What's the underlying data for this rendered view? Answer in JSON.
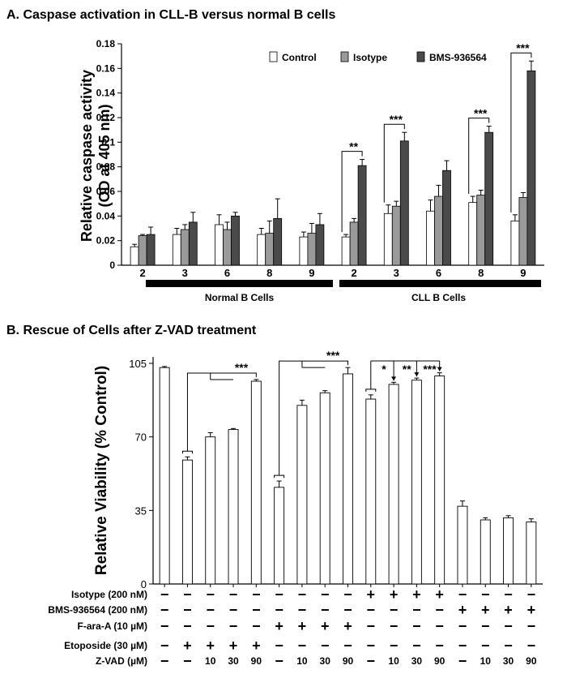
{
  "panel_a_title": "A. Caspase activation in CLL-B versus normal B cells",
  "panel_b_title": "B. Rescue of Cells after Z-VAD treatment",
  "colors": {
    "control": "#ffffff",
    "isotype": "#9a9a9a",
    "bms": "#4a4a4a"
  },
  "chart_data": [
    {
      "type": "bar",
      "title": "Caspase activation in CLL-B versus normal B cells",
      "ylabel": "Relative caspase activity (OD at 405 nm)",
      "ylabel_lines": [
        "Relative caspase activity",
        "(OD at 405 nm)"
      ],
      "ylim": [
        0,
        0.18
      ],
      "yticks": [
        "0",
        "0.02",
        "0.04",
        "0.06",
        "0.08",
        "0.1",
        "0.12",
        "0.14",
        "0.16",
        "0.18"
      ],
      "categories": [
        "2",
        "3",
        "6",
        "8",
        "9",
        "2",
        "3",
        "6",
        "8",
        "9"
      ],
      "groups": [
        {
          "label": "Normal B Cells"
        },
        {
          "label": "CLL B Cells"
        }
      ],
      "series": [
        {
          "name": "Control",
          "values": [
            0.015,
            0.025,
            0.033,
            0.025,
            0.023,
            0.023,
            0.042,
            0.044,
            0.051,
            0.036
          ],
          "errors": [
            0.002,
            0.005,
            0.008,
            0.005,
            0.004,
            0.002,
            0.007,
            0.009,
            0.005,
            0.005
          ]
        },
        {
          "name": "Isotype",
          "values": [
            0.024,
            0.029,
            0.029,
            0.026,
            0.026,
            0.035,
            0.048,
            0.056,
            0.057,
            0.055
          ],
          "errors": [
            0.001,
            0.004,
            0.006,
            0.01,
            0.008,
            0.003,
            0.004,
            0.009,
            0.004,
            0.004
          ]
        },
        {
          "name": "BMS-936564",
          "values": [
            0.025,
            0.035,
            0.04,
            0.038,
            0.033,
            0.081,
            0.101,
            0.077,
            0.108,
            0.158
          ],
          "errors": [
            0.006,
            0.008,
            0.003,
            0.016,
            0.009,
            0.005,
            0.007,
            0.008,
            0.005,
            0.008
          ]
        }
      ],
      "significance": [
        {
          "category_index": 5,
          "label": "**"
        },
        {
          "category_index": 6,
          "label": "***"
        },
        {
          "category_index": 8,
          "label": "***"
        },
        {
          "category_index": 9,
          "label": "***"
        }
      ]
    },
    {
      "type": "bar",
      "title": "Rescue of Cells after Z-VAD treatment",
      "ylabel": "Relative Viability (% Control)",
      "ylim": [
        0,
        105
      ],
      "yticks": [
        "0",
        "35",
        "70",
        "105"
      ],
      "values": [
        103,
        59,
        70,
        73.5,
        96.5,
        46,
        85,
        91,
        100,
        88,
        95,
        97,
        99,
        37,
        30.5,
        31.5,
        29.5
      ],
      "errors": [
        0.5,
        1.5,
        2,
        0.5,
        0.8,
        3,
        2.5,
        1,
        3,
        2,
        1,
        1,
        1.5,
        2.5,
        1,
        1,
        1.5
      ],
      "conditions": [
        {
          "label": "Isotype (200 nM)",
          "cells": [
            "−",
            "−",
            "−",
            "−",
            "−",
            "−",
            "−",
            "−",
            "−",
            "+",
            "+",
            "+",
            "+",
            "−",
            "−",
            "−",
            "−"
          ]
        },
        {
          "label": "BMS-936564 (200 nM)",
          "cells": [
            "−",
            "−",
            "−",
            "−",
            "−",
            "−",
            "−",
            "−",
            "−",
            "−",
            "−",
            "−",
            "−",
            "+",
            "+",
            "+",
            "+"
          ]
        },
        {
          "label": "F-ara-A (10 µM)",
          "cells": [
            "−",
            "−",
            "−",
            "−",
            "−",
            "+",
            "+",
            "+",
            "+",
            "−",
            "−",
            "−",
            "−",
            "−",
            "−",
            "−",
            "−"
          ]
        },
        {
          "label": "Etoposide (30 µM)",
          "cells": [
            "−",
            "+",
            "+",
            "+",
            "+",
            "−",
            "−",
            "−",
            "−",
            "−",
            "−",
            "−",
            "−",
            "−",
            "−",
            "−",
            "−"
          ]
        },
        {
          "label": "Z-VAD (µM)",
          "cells": [
            "−",
            "−",
            "10",
            "30",
            "90",
            "−",
            "10",
            "30",
            "90",
            "−",
            "10",
            "30",
            "90",
            "−",
            "10",
            "30",
            "90"
          ]
        }
      ],
      "significance": [
        {
          "from": 1,
          "to": 4,
          "label": "***"
        },
        {
          "from": 5,
          "to": 8,
          "label": "***"
        },
        {
          "from": 9,
          "to": 10,
          "label": "*"
        },
        {
          "from": 9,
          "to": 11,
          "label": "**"
        },
        {
          "from": 9,
          "to": 12,
          "label": "***"
        }
      ]
    }
  ]
}
